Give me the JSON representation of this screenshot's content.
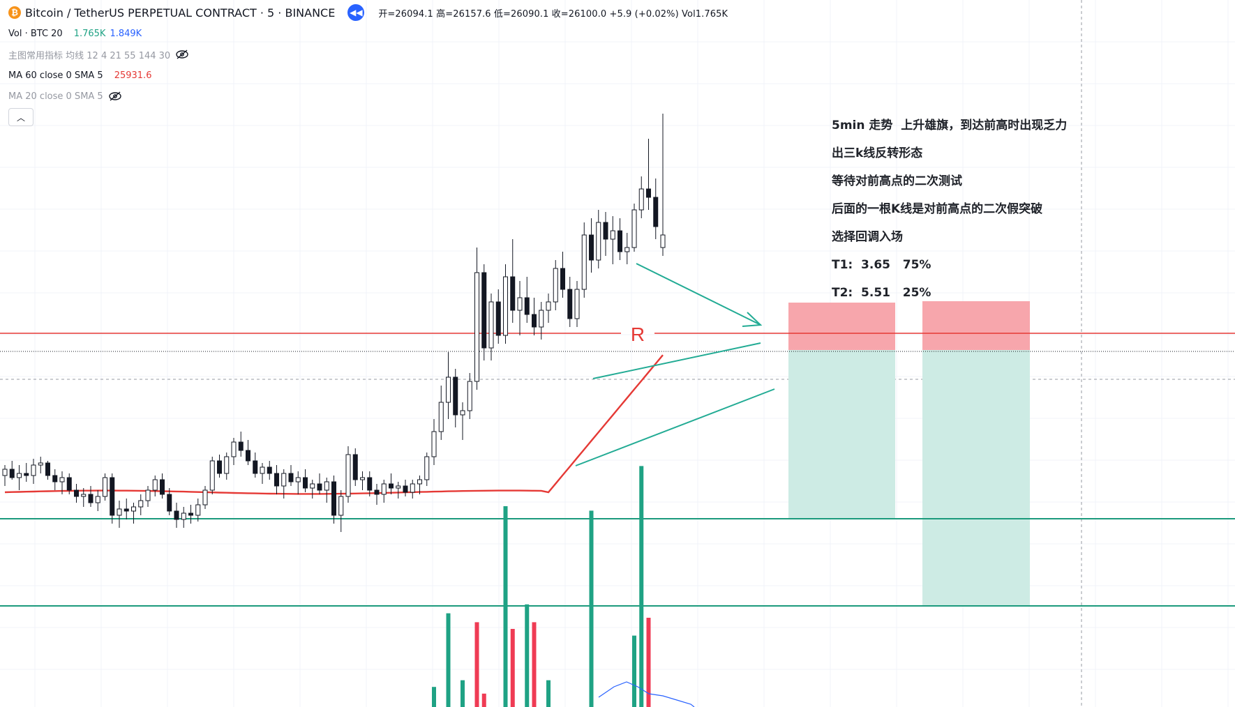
{
  "header": {
    "symbol_icon": "bitcoin-icon",
    "title": "Bitcoin / TetherUS PERPETUAL CONTRACT · 5 · BINANCE",
    "replay_icon": "rewind-icon",
    "ohlc": "开=26094.1 高=26157.6 低=26090.1 收=26100.0 +5.9 (+0.02%) Vol1.765K"
  },
  "legends": {
    "vol": {
      "label": "Vol · BTC 20",
      "value1": "1.765K",
      "value2": "1.849K"
    },
    "main_indicator": {
      "label": "主图常用指标 均线 12 4 21 55 144 30",
      "icon": "eye-off-icon"
    },
    "ma60": {
      "label": "MA 60 close 0 SMA 5",
      "value": "25931.6"
    },
    "ma20": {
      "label": "MA 20 close 0 SMA 5",
      "icon": "eye-off-icon"
    },
    "collapse_icon": "chevron-up-icon"
  },
  "annotation": {
    "lines": [
      "5min 走势  上升雄旗，到达前高时出现乏力",
      "出三k线反转形态",
      "等待对前高点的二次测试",
      "后面的一根K线是对前高点的二次假突破",
      "选择回调入场",
      "T1:  3.65   75%",
      "T2:  5.51   25%"
    ],
    "resistance_label": "R"
  },
  "colors": {
    "up": "#ffffff",
    "down": "#131722",
    "candle_outline": "#131722",
    "ma60": "#e53935",
    "resistance": "#e53935",
    "trendline": "#22ab94",
    "target_line": "#1b9a7c",
    "stop_zone": "#f7a1a8",
    "target_zone": "#cdebe4",
    "vol_up": "#1fa284",
    "vol_down": "#ef3b54",
    "vol_ma": "#2962ff",
    "ma60_text": "#e53935",
    "vol_val1": "#1fa284",
    "vol_val2": "#2962ff"
  },
  "chart_data": {
    "type": "candlestick",
    "symbol": "BTCUSDT.P",
    "interval": "5",
    "levels": {
      "resistance": 26128,
      "current": 26100,
      "target1": 25965,
      "target2": 25898
    },
    "candles": [
      [
        25985,
        25990,
        25980,
        25988
      ],
      [
        25988,
        25992,
        25983,
        25984
      ],
      [
        25984,
        25990,
        25978,
        25986
      ],
      [
        25986,
        25991,
        25982,
        25985
      ],
      [
        25985,
        25993,
        25981,
        25990
      ],
      [
        25990,
        25994,
        25986,
        25991
      ],
      [
        25991,
        25992,
        25983,
        25985
      ],
      [
        25985,
        25988,
        25978,
        25982
      ],
      [
        25982,
        25987,
        25976,
        25984
      ],
      [
        25984,
        25986,
        25976,
        25978
      ],
      [
        25978,
        25981,
        25972,
        25975
      ],
      [
        25975,
        25979,
        25970,
        25976
      ],
      [
        25976,
        25980,
        25970,
        25972
      ],
      [
        25972,
        25978,
        25968,
        25975
      ],
      [
        25975,
        25986,
        25973,
        25984
      ],
      [
        25984,
        25986,
        25962,
        25966
      ],
      [
        25966,
        25973,
        25960,
        25969
      ],
      [
        25969,
        25974,
        25964,
        25968
      ],
      [
        25968,
        25972,
        25962,
        25970
      ],
      [
        25970,
        25976,
        25966,
        25973
      ],
      [
        25973,
        25980,
        25970,
        25978
      ],
      [
        25978,
        25985,
        25975,
        25983
      ],
      [
        25983,
        25986,
        25974,
        25976
      ],
      [
        25976,
        25979,
        25966,
        25968
      ],
      [
        25968,
        25972,
        25960,
        25964
      ],
      [
        25964,
        25970,
        25960,
        25967
      ],
      [
        25967,
        25971,
        25962,
        25966
      ],
      [
        25966,
        25974,
        25963,
        25971
      ],
      [
        25971,
        25980,
        25969,
        25978
      ],
      [
        25978,
        25994,
        25976,
        25992
      ],
      [
        25992,
        25995,
        25984,
        25986
      ],
      [
        25986,
        25996,
        25983,
        25994
      ],
      [
        25994,
        26003,
        25990,
        26001
      ],
      [
        26001,
        26006,
        25994,
        25997
      ],
      [
        25997,
        26002,
        25990,
        25992
      ],
      [
        25992,
        25996,
        25984,
        25986
      ],
      [
        25986,
        25991,
        25981,
        25989
      ],
      [
        25989,
        25992,
        25983,
        25986
      ],
      [
        25986,
        25990,
        25976,
        25980
      ],
      [
        25980,
        25988,
        25974,
        25986
      ],
      [
        25986,
        25990,
        25980,
        25982
      ],
      [
        25982,
        25987,
        25976,
        25984
      ],
      [
        25984,
        25988,
        25977,
        25979
      ],
      [
        25979,
        25983,
        25974,
        25981
      ],
      [
        25981,
        25986,
        25976,
        25978
      ],
      [
        25978,
        25984,
        25972,
        25982
      ],
      [
        25982,
        25985,
        25962,
        25966
      ],
      [
        25966,
        25978,
        25958,
        25975
      ],
      [
        25975,
        25999,
        25972,
        25995
      ],
      [
        25995,
        25998,
        25980,
        25983
      ],
      [
        25983,
        25987,
        25978,
        25984
      ],
      [
        25984,
        25987,
        25975,
        25978
      ],
      [
        25978,
        25981,
        25971,
        25976
      ],
      [
        25976,
        25983,
        25972,
        25981
      ],
      [
        25981,
        25986,
        25976,
        25979
      ],
      [
        25979,
        25982,
        25974,
        25980
      ],
      [
        25980,
        25983,
        25975,
        25977
      ],
      [
        25977,
        25983,
        25974,
        25981
      ],
      [
        25981,
        25985,
        25976,
        25983
      ],
      [
        25983,
        25996,
        25980,
        25994
      ],
      [
        25994,
        26012,
        25990,
        26006
      ],
      [
        26006,
        26028,
        26002,
        26020
      ],
      [
        26020,
        26044,
        26012,
        26032
      ],
      [
        26032,
        26036,
        26008,
        26014
      ],
      [
        26014,
        26020,
        26002,
        26016
      ],
      [
        26016,
        26034,
        26012,
        26030
      ],
      [
        26030,
        26094,
        26026,
        26082
      ],
      [
        26082,
        26086,
        26040,
        26046
      ],
      [
        26046,
        26072,
        26040,
        26068
      ],
      [
        26068,
        26074,
        26048,
        26052
      ],
      [
        26052,
        26086,
        26048,
        26080
      ],
      [
        26080,
        26098,
        26058,
        26064
      ],
      [
        26064,
        26078,
        26052,
        26070
      ],
      [
        26070,
        26080,
        26058,
        26062
      ],
      [
        26062,
        26070,
        26052,
        26056
      ],
      [
        26056,
        26068,
        26050,
        26064
      ],
      [
        26064,
        26072,
        26058,
        26068
      ],
      [
        26068,
        26088,
        26064,
        26084
      ],
      [
        26084,
        26092,
        26070,
        26074
      ],
      [
        26074,
        26080,
        26056,
        26060
      ],
      [
        26060,
        26078,
        26056,
        26074
      ],
      [
        26074,
        26106,
        26070,
        26100
      ],
      [
        26100,
        26108,
        26082,
        26088
      ],
      [
        26088,
        26112,
        26084,
        26106
      ],
      [
        26106,
        26111,
        26090,
        26098
      ],
      [
        26098,
        26109,
        26086,
        26102
      ],
      [
        26102,
        26108,
        26088,
        26092
      ],
      [
        26092,
        26101,
        26086,
        26094
      ],
      [
        26094,
        26115,
        26092,
        26112
      ],
      [
        26112,
        26128,
        26108,
        26122
      ],
      [
        26122,
        26146,
        26112,
        26118
      ],
      [
        26118,
        26127,
        26098,
        26104
      ],
      [
        26094,
        26158,
        26090,
        26100
      ]
    ],
    "volume_bars": [
      {
        "i": 60,
        "v": 90,
        "up": true
      },
      {
        "i": 62,
        "v": 420,
        "up": true
      },
      {
        "i": 64,
        "v": 120,
        "up": true
      },
      {
        "i": 66,
        "v": 380,
        "up": false
      },
      {
        "i": 67,
        "v": 60,
        "up": false
      },
      {
        "i": 70,
        "v": 900,
        "up": true
      },
      {
        "i": 71,
        "v": 350,
        "up": false
      },
      {
        "i": 73,
        "v": 460,
        "up": true
      },
      {
        "i": 74,
        "v": 380,
        "up": false
      },
      {
        "i": 76,
        "v": 120,
        "up": true
      },
      {
        "i": 82,
        "v": 880,
        "up": true
      },
      {
        "i": 88,
        "v": 320,
        "up": true
      },
      {
        "i": 89,
        "v": 1080,
        "up": true
      },
      {
        "i": 90,
        "v": 400,
        "up": false
      }
    ]
  }
}
